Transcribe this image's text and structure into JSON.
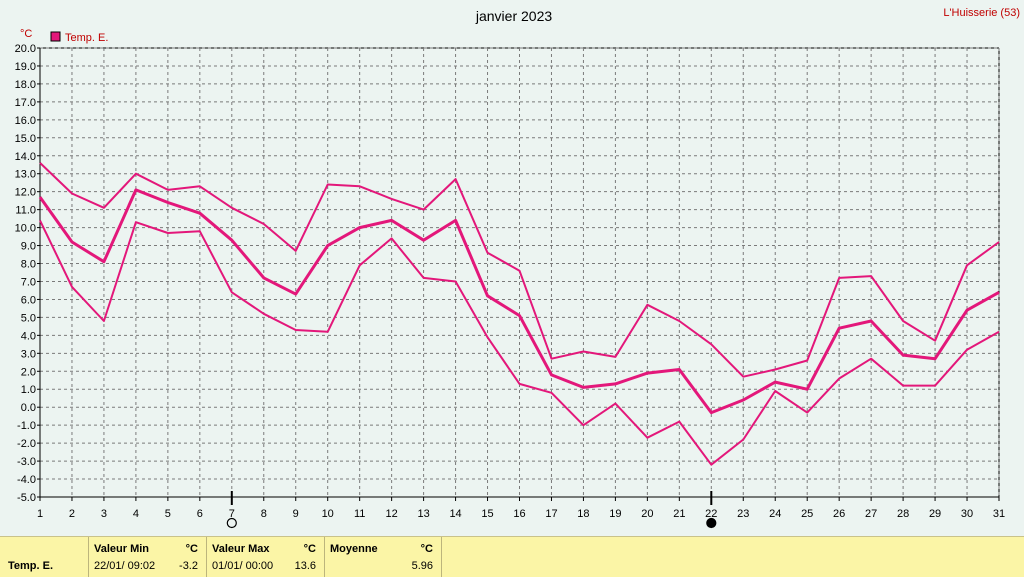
{
  "title": "janvier 2023",
  "station": "L'Huisserie (53)",
  "unit": "°C",
  "legend": {
    "label": "Temp. E.",
    "color": "#e3177a"
  },
  "colors": {
    "series": "#e3177a",
    "grid": "#7a7a7a",
    "background": "#ecf4f1",
    "footer": "#fbf5a6"
  },
  "markers": [
    {
      "day": 7,
      "symbol": "empty-circle"
    },
    {
      "day": 22,
      "symbol": "filled-circle"
    }
  ],
  "chart_data": {
    "type": "line",
    "x": [
      1,
      2,
      3,
      4,
      5,
      6,
      7,
      8,
      9,
      10,
      11,
      12,
      13,
      14,
      15,
      16,
      17,
      18,
      19,
      20,
      21,
      22,
      23,
      24,
      25,
      26,
      27,
      28,
      29,
      30,
      31
    ],
    "ylim": [
      -5,
      20
    ],
    "yticks": [
      "20.0",
      "19.0",
      "18.0",
      "17.0",
      "16.0",
      "15.0",
      "14.0",
      "13.0",
      "12.0",
      "11.0",
      "10.0",
      "9.0",
      "8.0",
      "7.0",
      "6.0",
      "5.0",
      "4.0",
      "3.0",
      "2.0",
      "1.0",
      "0.0",
      "-1.0",
      "-2.0",
      "-3.0",
      "-4.0",
      "-5.0"
    ],
    "xticks": [
      "1",
      "2",
      "3",
      "4",
      "5",
      "6",
      "7",
      "8",
      "9",
      "10",
      "11",
      "12",
      "13",
      "14",
      "15",
      "16",
      "17",
      "18",
      "19",
      "20",
      "21",
      "22",
      "23",
      "24",
      "25",
      "26",
      "27",
      "28",
      "29",
      "30",
      "31"
    ],
    "ylabel": "°C",
    "grid": true,
    "legend_position": "top-left",
    "series": [
      {
        "name": "Temp. E.",
        "role": "max",
        "values": [
          13.6,
          11.9,
          11.1,
          13.0,
          12.1,
          12.3,
          11.1,
          10.2,
          8.7,
          12.4,
          12.3,
          11.6,
          11.0,
          12.7,
          8.6,
          7.6,
          2.7,
          3.1,
          2.8,
          5.7,
          4.8,
          3.5,
          1.7,
          2.1,
          2.6,
          7.2,
          7.3,
          4.8,
          3.7,
          7.9,
          9.2
        ]
      },
      {
        "name": "Temp. E.",
        "role": "mean",
        "values": [
          11.7,
          9.2,
          8.1,
          12.1,
          11.4,
          10.8,
          9.3,
          7.2,
          6.3,
          9.0,
          10.0,
          10.4,
          9.3,
          10.4,
          6.2,
          5.1,
          1.8,
          1.1,
          1.3,
          1.9,
          2.1,
          -0.3,
          0.4,
          1.4,
          1.0,
          4.4,
          4.8,
          2.9,
          2.7,
          5.4,
          6.4
        ]
      },
      {
        "name": "Temp. E.",
        "role": "min",
        "values": [
          10.4,
          6.7,
          4.8,
          10.3,
          9.7,
          9.8,
          6.4,
          5.2,
          4.3,
          4.2,
          7.9,
          9.4,
          7.2,
          7.0,
          3.9,
          1.3,
          0.8,
          -1.0,
          0.2,
          -1.7,
          -0.8,
          -3.2,
          -1.8,
          0.9,
          -0.3,
          1.6,
          2.7,
          1.2,
          1.2,
          3.2,
          4.2
        ]
      }
    ]
  },
  "footer": {
    "row_label": "Temp. E.",
    "min": {
      "header": "Valeur Min",
      "unit": "°C",
      "datetime": "22/01/  09:02",
      "value": "-3.2"
    },
    "max": {
      "header": "Valeur Max",
      "unit": "°C",
      "datetime": "01/01/  00:00",
      "value": "13.6"
    },
    "mean": {
      "header": "Moyenne",
      "unit": "°C",
      "value": "5.96"
    }
  }
}
